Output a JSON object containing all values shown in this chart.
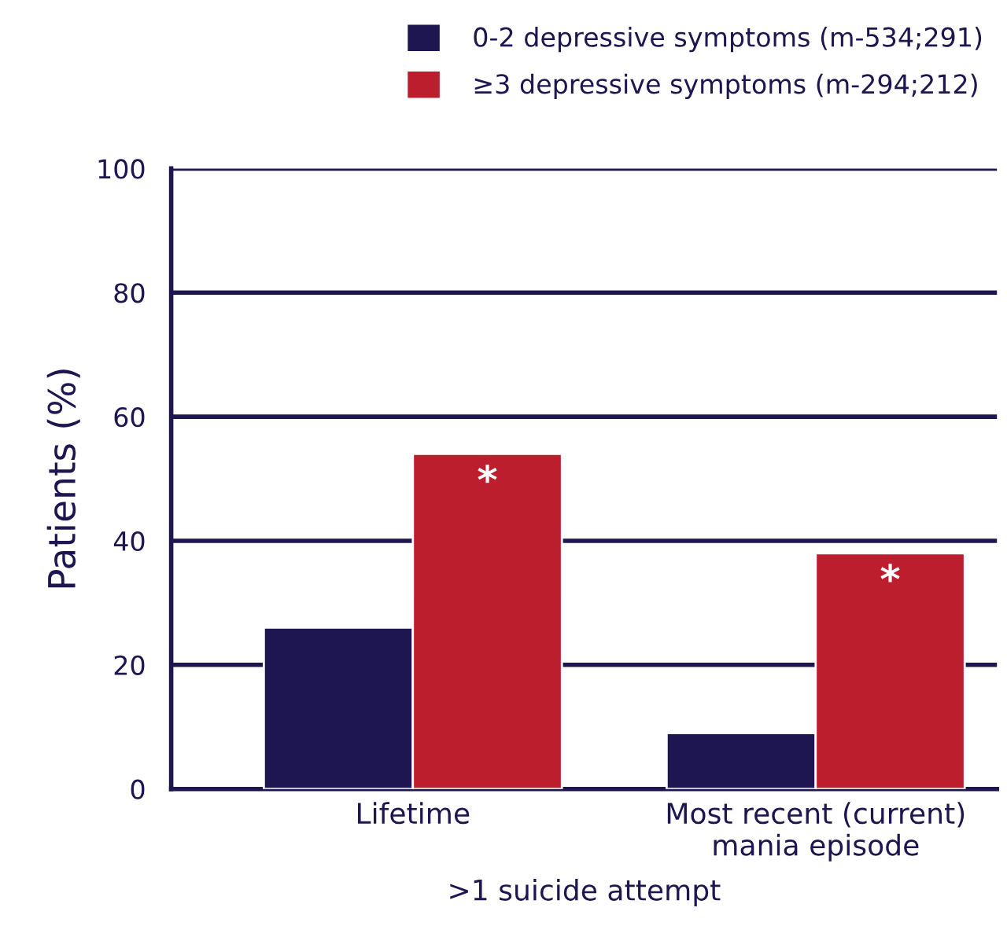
{
  "chart_data": {
    "type": "bar",
    "xlabel": ">1 suicide attempt",
    "ylabel": "Patients (%)",
    "categories": [
      "Lifetime",
      "Most recent (current)\nmania episode"
    ],
    "series": [
      {
        "name": "0-2 depressive symptoms (m-534;291)",
        "color": "#1e1650",
        "values": [
          26,
          9
        ]
      },
      {
        "name": "≥3 depressive symptoms (m-294;212)",
        "color": "#bc1e2d",
        "values": [
          54,
          38
        ]
      }
    ],
    "ylim": [
      0,
      100
    ],
    "yticks": [
      0,
      20,
      40,
      60,
      80,
      100
    ],
    "grid": "y",
    "legend": "top right",
    "annotations": [
      {
        "text": "*",
        "x": "Lifetime",
        "y": 54
      },
      {
        "text": "*",
        "x": "Most recent (current)\nmania episode",
        "y": 38
      }
    ]
  }
}
